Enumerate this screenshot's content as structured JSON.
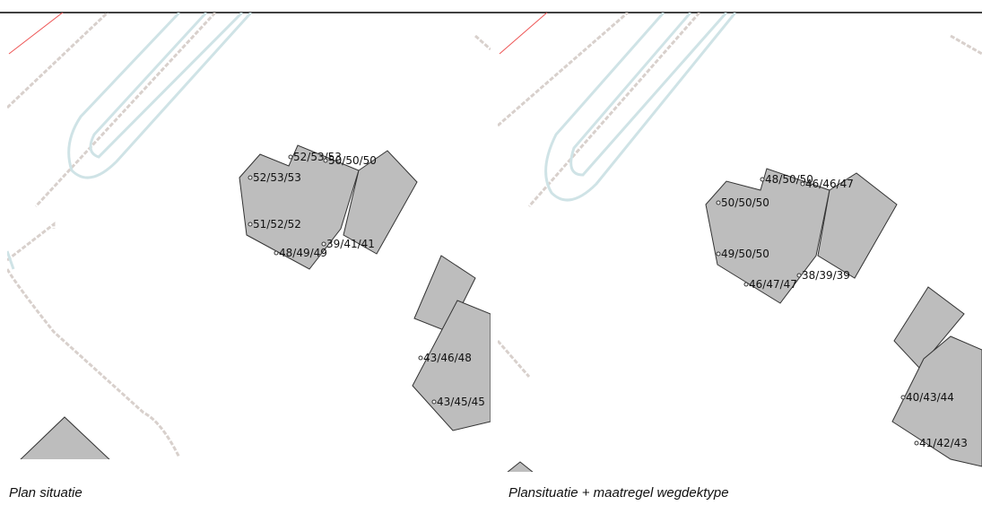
{
  "panels": [
    {
      "caption": "Plan situatie",
      "labels": [
        "52/53/53",
        "50/50/50",
        "52/53/53",
        "51/52/52",
        "48/49/49",
        "39/41/41",
        "43/46/48",
        "43/45/45"
      ]
    },
    {
      "caption": "Plansituatie + maatregel wegdektype",
      "labels": [
        "48/50/50",
        "46/46/47",
        "50/50/50",
        "49/50/50",
        "46/47/47",
        "38/39/39",
        "40/43/44",
        "41/42/43"
      ]
    }
  ]
}
